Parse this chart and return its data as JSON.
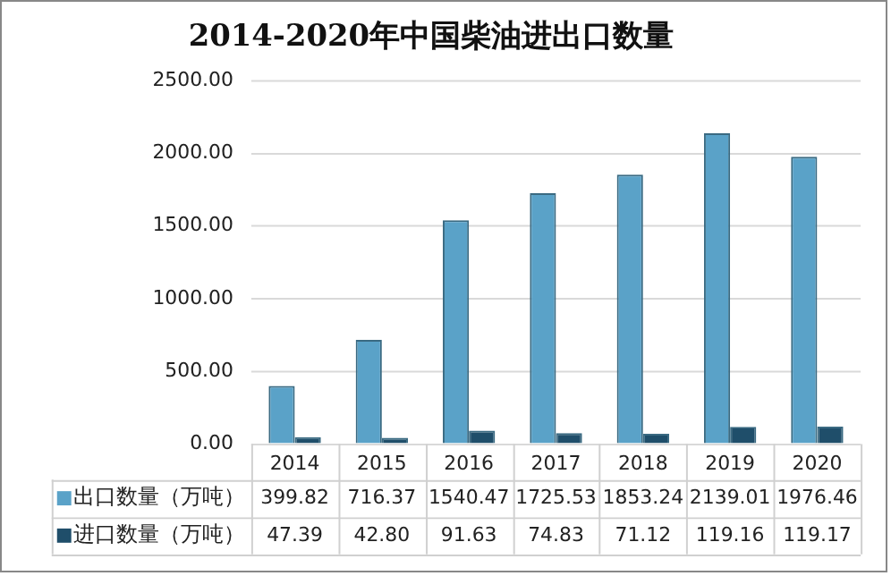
{
  "chart_data": {
    "type": "bar",
    "title": "2014-2020年中国柴油进出口数量",
    "categories": [
      "2014",
      "2015",
      "2016",
      "2017",
      "2018",
      "2019",
      "2020"
    ],
    "series": [
      {
        "name": "出口数量（万吨）",
        "color": "#5aa2c8",
        "values": [
          399.82,
          716.37,
          1540.47,
          1725.53,
          1853.24,
          2139.01,
          1976.46
        ],
        "value_labels": [
          "399.82",
          "716.37",
          "1540.47",
          "1725.53",
          "1853.24",
          "2139.01",
          "1976.46"
        ]
      },
      {
        "name": "进口数量（万吨）",
        "color": "#1f4e6a",
        "values": [
          47.39,
          42.8,
          91.63,
          74.83,
          71.12,
          119.16,
          119.17
        ],
        "value_labels": [
          "47.39",
          "42.80",
          "91.63",
          "74.83",
          "71.12",
          "119.16",
          "119.17"
        ]
      }
    ],
    "ylim": [
      0,
      2500
    ],
    "yticks": [
      "0.00",
      "500.00",
      "1000.00",
      "1500.00",
      "2000.00",
      "2500.00"
    ],
    "grid": "y",
    "legend": "bottom"
  }
}
